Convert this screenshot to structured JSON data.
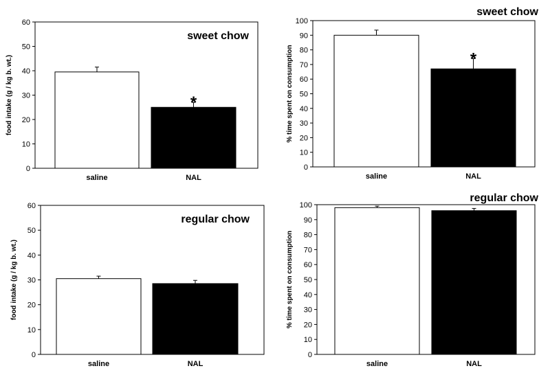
{
  "chart_data": [
    {
      "type": "bar",
      "title": "sweet chow",
      "categories": [
        "saline",
        "NAL"
      ],
      "values": [
        39.5,
        25
      ],
      "errors": [
        2,
        2
      ],
      "significance": [
        "",
        "*"
      ],
      "ylabel": "food intake (g / kg b. wt.)",
      "xlabel": "",
      "ylim": [
        0,
        60
      ],
      "yticks": [
        0,
        10,
        20,
        30,
        40,
        50,
        60
      ],
      "bar_colors": [
        "#ffffff",
        "#000000"
      ],
      "title_position": "inside-top-right",
      "grid": false
    },
    {
      "type": "bar",
      "title": "sweet chow",
      "categories": [
        "saline",
        "NAL"
      ],
      "values": [
        90,
        67
      ],
      "errors": [
        3.5,
        7
      ],
      "significance": [
        "",
        "*"
      ],
      "ylabel": "% time spent on consumption",
      "xlabel": "",
      "ylim": [
        0,
        100
      ],
      "yticks": [
        0,
        10,
        20,
        30,
        40,
        50,
        60,
        70,
        80,
        90,
        100
      ],
      "bar_colors": [
        "#ffffff",
        "#000000"
      ],
      "title_position": "above-right",
      "grid": false
    },
    {
      "type": "bar",
      "title": "regular chow",
      "categories": [
        "saline",
        "NAL"
      ],
      "values": [
        30.5,
        28.5
      ],
      "errors": [
        1,
        1.3
      ],
      "significance": [
        "",
        ""
      ],
      "ylabel": "food intake (g / kg b. wt.)",
      "xlabel": "",
      "ylim": [
        0,
        60
      ],
      "yticks": [
        0,
        10,
        20,
        30,
        40,
        50,
        60
      ],
      "bar_colors": [
        "#ffffff",
        "#000000"
      ],
      "title_position": "inside-top-right",
      "grid": false
    },
    {
      "type": "bar",
      "title": "regular chow",
      "categories": [
        "saline",
        "NAL"
      ],
      "values": [
        98,
        96
      ],
      "errors": [
        1,
        1.5
      ],
      "significance": [
        "",
        ""
      ],
      "ylabel": "% time spent on consumption",
      "xlabel": "",
      "ylim": [
        0,
        100
      ],
      "yticks": [
        0,
        10,
        20,
        30,
        40,
        50,
        60,
        70,
        80,
        90,
        100
      ],
      "bar_colors": [
        "#ffffff",
        "#000000"
      ],
      "title_position": "above-right",
      "grid": false
    }
  ]
}
